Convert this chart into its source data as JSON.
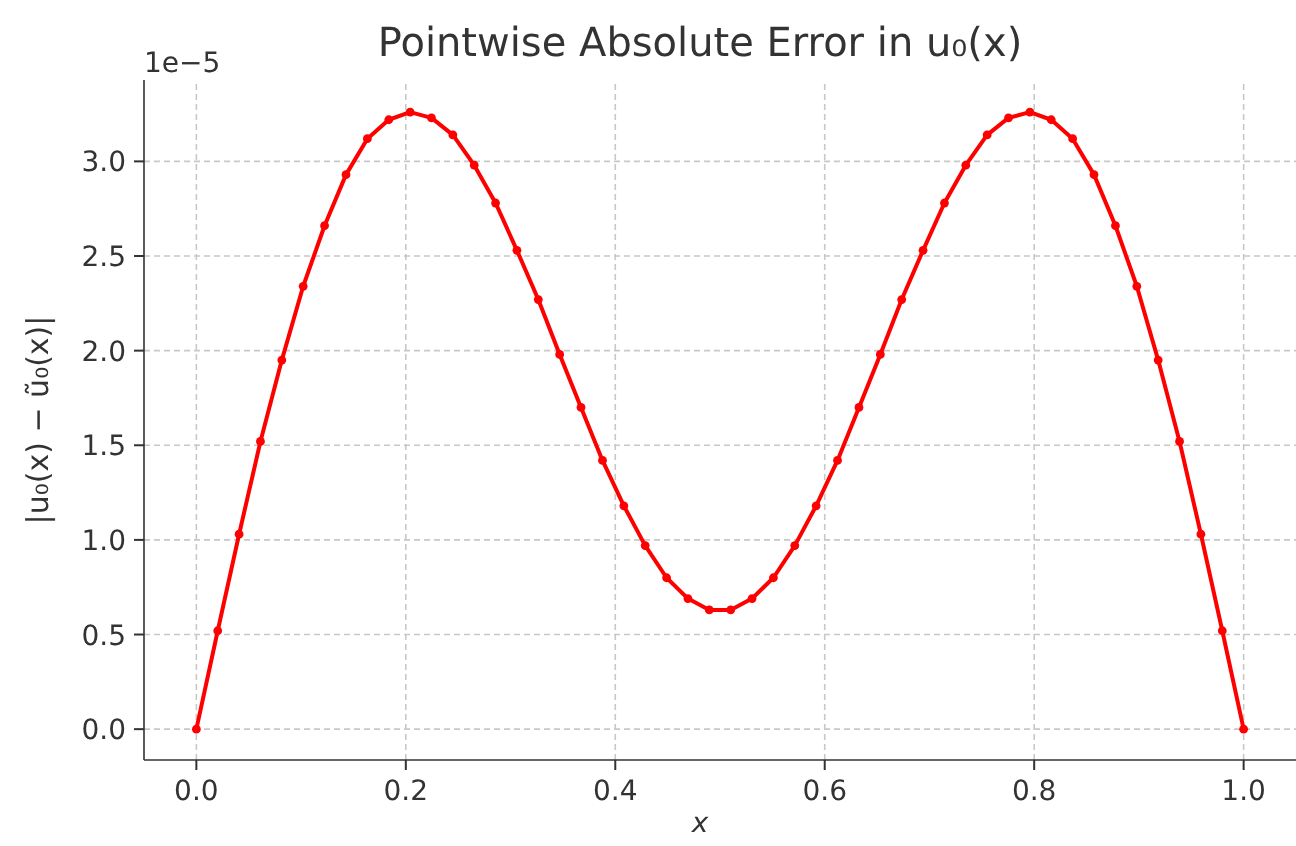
{
  "chart_data": {
    "type": "line",
    "title": "Pointwise Absolute Error in u₀(x)",
    "xlabel": "x",
    "ylabel": "|u₀(x) − ũ₀(x)|",
    "annotations": [
      "1e−5"
    ],
    "x": [
      0,
      0.0204,
      0.0408,
      0.0612,
      0.0816,
      0.102,
      0.1224,
      0.1429,
      0.1633,
      0.1837,
      0.2041,
      0.2245,
      0.2449,
      0.2653,
      0.2857,
      0.3061,
      0.3265,
      0.3469,
      0.3673,
      0.3878,
      0.4082,
      0.4286,
      0.449,
      0.4694,
      0.4898,
      0.5102,
      0.5306,
      0.551,
      0.5714,
      0.5918,
      0.6122,
      0.6327,
      0.6531,
      0.6735,
      0.6939,
      0.7143,
      0.7347,
      0.7551,
      0.7755,
      0.7959,
      0.8163,
      0.8367,
      0.8571,
      0.8776,
      0.898,
      0.9184,
      0.9388,
      0.9592,
      0.9796,
      1
    ],
    "series": [
      {
        "color": "#ff0000",
        "values": [
          0,
          0.52,
          1.03,
          1.52,
          1.95,
          2.34,
          2.66,
          2.93,
          3.12,
          3.22,
          3.26,
          3.23,
          3.14,
          2.98,
          2.78,
          2.53,
          2.27,
          1.98,
          1.7,
          1.42,
          1.18,
          0.97,
          0.8,
          0.69,
          0.63,
          0.63,
          0.69,
          0.8,
          0.97,
          1.18,
          1.42,
          1.7,
          1.98,
          2.27,
          2.53,
          2.78,
          2.98,
          3.14,
          3.23,
          3.26,
          3.22,
          3.12,
          2.93,
          2.66,
          2.34,
          1.95,
          1.52,
          1.03,
          0.52,
          0
        ]
      }
    ],
    "xlim": [
      -0.05,
      1.05
    ],
    "xticks": [
      {
        "value": 0,
        "label": "0.0"
      },
      0.2,
      0.4,
      0.6,
      0.8,
      {
        "value": 1,
        "label": "1.0"
      }
    ],
    "ylim": [
      -0.163,
      3.43
    ],
    "yticks": [
      {
        "value": 0,
        "label": "0.0"
      },
      0.5,
      {
        "value": 1,
        "label": "1.0"
      },
      1.5,
      {
        "value": 2,
        "label": "2.0"
      },
      2.5,
      {
        "value": 3,
        "label": "3.0"
      }
    ],
    "grid": true,
    "marker": "circle",
    "line_style": "solid"
  }
}
